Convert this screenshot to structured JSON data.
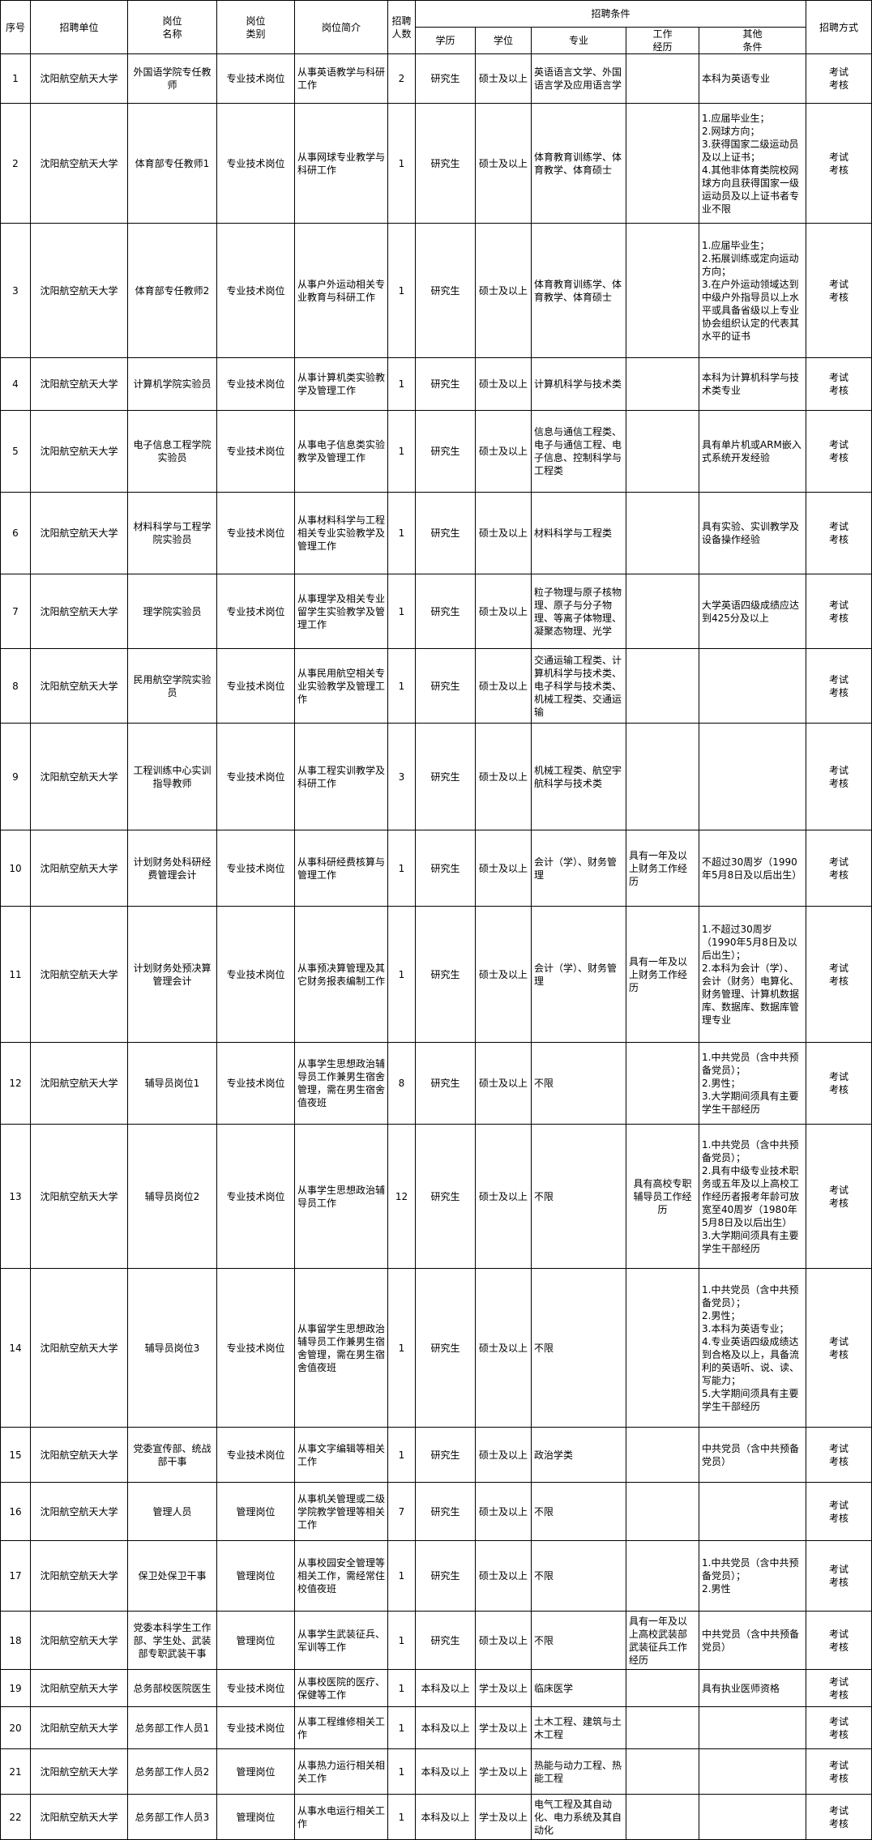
{
  "headers": {
    "seq": "序号",
    "unit": "招聘单位",
    "position_name": "岗位\n名称",
    "position_type": "岗位\n类别",
    "position_desc": "岗位简介",
    "count": "招聘\n人数",
    "conditions": "招聘条件",
    "education": "学历",
    "degree": "学位",
    "major": "专业",
    "experience": "工作\n经历",
    "other": "其他\n条件",
    "method": "招聘方式"
  },
  "rows": [
    {
      "seq": "1",
      "unit": "沈阳航空航天大学",
      "name": "外国语学院专任教师",
      "type": "专业技术岗位",
      "desc": "从事英语教学与科研工作",
      "count": "2",
      "edu": "研究生",
      "degree": "硕士及以上",
      "major": "英语语言文学、外国语言学及应用语言学",
      "exp": "",
      "other": "本科为英语专业",
      "method": "考试\n考核"
    },
    {
      "seq": "2",
      "unit": "沈阳航空航天大学",
      "name": "体育部专任教师1",
      "type": "专业技术岗位",
      "desc": "从事网球专业教学与科研工作",
      "count": "1",
      "edu": "研究生",
      "degree": "硕士及以上",
      "major": "体育教育训练学、体育教学、体育硕士",
      "exp": "",
      "other": "1.应届毕业生；\n2.网球方向；\n3.获得国家二级运动员及以上证书；\n4.其他非体育类院校网球方向且获得国家一级运动员及以上证书者专业不限",
      "method": "考试\n考核"
    },
    {
      "seq": "3",
      "unit": "沈阳航空航天大学",
      "name": "体育部专任教师2",
      "type": "专业技术岗位",
      "desc": "从事户外运动相关专业教育与科研工作",
      "count": "1",
      "edu": "研究生",
      "degree": "硕士及以上",
      "major": "体育教育训练学、体育教学、体育硕士",
      "exp": "",
      "other": "1.应届毕业生；\n2.拓展训练或定向运动方向；\n3.在户外运动领域达到中级户外指导员以上水平或具备省级以上专业协会组织认定的代表其水平的证书",
      "method": "考试\n考核"
    },
    {
      "seq": "4",
      "unit": "沈阳航空航天大学",
      "name": "计算机学院实验员",
      "type": "专业技术岗位",
      "desc": "从事计算机类实验教学及管理工作",
      "count": "1",
      "edu": "研究生",
      "degree": "硕士及以上",
      "major": "计算机科学与技术类",
      "exp": "",
      "other": "本科为计算机科学与技术类专业",
      "method": "考试\n考核"
    },
    {
      "seq": "5",
      "unit": "沈阳航空航天大学",
      "name": "电子信息工程学院实验员",
      "type": "专业技术岗位",
      "desc": "从事电子信息类实验教学及管理工作",
      "count": "1",
      "edu": "研究生",
      "degree": "硕士及以上",
      "major": "信息与通信工程类、电子与通信工程、电子信息、控制科学与工程类",
      "exp": "",
      "other": "具有单片机或ARM嵌入式系统开发经验",
      "method": "考试\n考核"
    },
    {
      "seq": "6",
      "unit": "沈阳航空航天大学",
      "name": "材料科学与工程学院实验员",
      "type": "专业技术岗位",
      "desc": "从事材料科学与工程相关专业实验教学及管理工作",
      "count": "1",
      "edu": "研究生",
      "degree": "硕士及以上",
      "major": "材料科学与工程类",
      "exp": "",
      "other": "具有实验、实训教学及设备操作经验",
      "method": "考试\n考核"
    },
    {
      "seq": "7",
      "unit": "沈阳航空航天大学",
      "name": "理学院实验员",
      "type": "专业技术岗位",
      "desc": "从事理学及相关专业留学生实验教学及管理工作",
      "count": "1",
      "edu": "研究生",
      "degree": "硕士及以上",
      "major": "粒子物理与原子核物理、原子与分子物理、等离子体物理、凝聚态物理、光学",
      "exp": "",
      "other": "大学英语四级成绩应达到425分及以上",
      "method": "考试\n考核"
    },
    {
      "seq": "8",
      "unit": "沈阳航空航天大学",
      "name": "民用航空学院实验员",
      "type": "专业技术岗位",
      "desc": "从事民用航空相关专业实验教学及管理工作",
      "count": "1",
      "edu": "研究生",
      "degree": "硕士及以上",
      "major": "交通运输工程类、计算机科学与技术类、电子科学与技术类、机械工程类、交通运输",
      "exp": "",
      "other": "",
      "method": "考试\n考核"
    },
    {
      "seq": "9",
      "unit": "沈阳航空航天大学",
      "name": "工程训练中心实训指导教师",
      "type": "专业技术岗位",
      "desc": "从事工程实训教学及科研工作",
      "count": "3",
      "edu": "研究生",
      "degree": "硕士及以上",
      "major": "机械工程类、航空宇航科学与技术类",
      "exp": "",
      "other": "",
      "method": "考试\n考核"
    },
    {
      "seq": "10",
      "unit": "沈阳航空航天大学",
      "name": "计划财务处科研经费管理会计",
      "type": "专业技术岗位",
      "desc": "从事科研经费核算与管理工作",
      "count": "1",
      "edu": "研究生",
      "degree": "硕士及以上",
      "major": "会计（学）、财务管理",
      "exp": "具有一年及以上财务工作经历",
      "other": "不超过30周岁（1990年5月8日及以后出生）",
      "method": "考试\n考核"
    },
    {
      "seq": "11",
      "unit": "沈阳航空航天大学",
      "name": "计划财务处预决算管理会计",
      "type": "专业技术岗位",
      "desc": "从事预决算管理及其它财务报表编制工作",
      "count": "1",
      "edu": "研究生",
      "degree": "硕士及以上",
      "major": "会计（学）、财务管理",
      "exp": "具有一年及以上财务工作经历",
      "other": "1.不超过30周岁（1990年5月8日及以后出生）；\n2.本科为会计（学）、会计（财务）电算化、财务管理、计算机数据库、数据库、数据库管理专业",
      "method": "考试\n考核"
    },
    {
      "seq": "12",
      "unit": "沈阳航空航天大学",
      "name": "辅导员岗位1",
      "type": "专业技术岗位",
      "desc": "从事学生思想政治辅导员工作兼男生宿舍管理，需在男生宿舍值夜班",
      "count": "8",
      "edu": "研究生",
      "degree": "硕士及以上",
      "major": "不限",
      "exp": "",
      "other": "1.中共党员（含中共预备党员）；\n2.男性；\n3.大学期间须具有主要学生干部经历",
      "method": "考试\n考核"
    },
    {
      "seq": "13",
      "unit": "沈阳航空航天大学",
      "name": "辅导员岗位2",
      "type": "专业技术岗位",
      "desc": "从事学生思想政治辅导员工作",
      "count": "12",
      "edu": "研究生",
      "degree": "硕士及以上",
      "major": "不限",
      "exp": "具有高校专职辅导员工作经历",
      "other": "1.中共党员（含中共预备党员）；\n2.具有中级专业技术职务或五年及以上高校工作经历者报考年龄可放宽至40周岁（1980年5月8日及以后出生）\n3.大学期间须具有主要学生干部经历",
      "method": "考试\n考核"
    },
    {
      "seq": "14",
      "unit": "沈阳航空航天大学",
      "name": "辅导员岗位3",
      "type": "专业技术岗位",
      "desc": "从事留学生思想政治辅导员工作兼男生宿舍管理，需在男生宿舍值夜班",
      "count": "1",
      "edu": "研究生",
      "degree": "硕士及以上",
      "major": "不限",
      "exp": "",
      "other": "1.中共党员（含中共预备党员）；\n2.男性；\n3.本科为英语专业；\n4.专业英语四级成绩达到合格及以上，具备流利的英语听、说、读、写能力；\n5.大学期间须具有主要学生干部经历",
      "method": "考试\n考核"
    },
    {
      "seq": "15",
      "unit": "沈阳航空航天大学",
      "name": "党委宣传部、统战部干事",
      "type": "专业技术岗位",
      "desc": "从事文字编辑等相关工作",
      "count": "1",
      "edu": "研究生",
      "degree": "硕士及以上",
      "major": "政治学类",
      "exp": "",
      "other": "中共党员（含中共预备党员）",
      "method": "考试\n考核"
    },
    {
      "seq": "16",
      "unit": "沈阳航空航天大学",
      "name": "管理人员",
      "type": "管理岗位",
      "desc": "从事机关管理或二级学院教学管理等相关工作",
      "count": "7",
      "edu": "研究生",
      "degree": "硕士及以上",
      "major": "不限",
      "exp": "",
      "other": "",
      "method": "考试\n考核"
    },
    {
      "seq": "17",
      "unit": "沈阳航空航天大学",
      "name": "保卫处保卫干事",
      "type": "管理岗位",
      "desc": "从事校园安全管理等相关工作，需经常住校值夜班",
      "count": "1",
      "edu": "研究生",
      "degree": "硕士及以上",
      "major": "不限",
      "exp": "",
      "other": "1.中共党员（含中共预备党员）；\n2.男性",
      "method": "考试\n考核"
    },
    {
      "seq": "18",
      "unit": "沈阳航空航天大学",
      "name": "党委本科学生工作部、学生处、武装部专职武装干事",
      "type": "管理岗位",
      "desc": "从事学生武装征兵、军训等工作",
      "count": "1",
      "edu": "研究生",
      "degree": "硕士及以上",
      "major": "不限",
      "exp": "具有一年及以上高校武装部武装征兵工作经历",
      "other": "中共党员（含中共预备党员）",
      "method": "考试\n考核"
    },
    {
      "seq": "19",
      "unit": "沈阳航空航天大学",
      "name": "总务部校医院医生",
      "type": "专业技术岗位",
      "desc": "从事校医院的医疗、保健等工作",
      "count": "1",
      "edu": "本科及以上",
      "degree": "学士及以上",
      "major": "临床医学",
      "exp": "",
      "other": "具有执业医师资格",
      "method": "考试\n考核"
    },
    {
      "seq": "20",
      "unit": "沈阳航空航天大学",
      "name": "总务部工作人员1",
      "type": "专业技术岗位",
      "desc": "从事工程维修相关工作",
      "count": "1",
      "edu": "本科及以上",
      "degree": "学士及以上",
      "major": "土木工程、建筑与土木工程",
      "exp": "",
      "other": "",
      "method": "考试\n考核"
    },
    {
      "seq": "21",
      "unit": "沈阳航空航天大学",
      "name": "总务部工作人员2",
      "type": "管理岗位",
      "desc": "从事热力运行相关相关工作",
      "count": "1",
      "edu": "本科及以上",
      "degree": "学士及以上",
      "major": "热能与动力工程、热能工程",
      "exp": "",
      "other": "",
      "method": "考试\n考核"
    },
    {
      "seq": "22",
      "unit": "沈阳航空航天大学",
      "name": "总务部工作人员3",
      "type": "管理岗位",
      "desc": "从事水电运行相关工作",
      "count": "1",
      "edu": "本科及以上",
      "degree": "学士及以上",
      "major": "电气工程及其自动化、电力系统及其自动化",
      "exp": "",
      "other": "",
      "method": "考试\n考核"
    }
  ]
}
